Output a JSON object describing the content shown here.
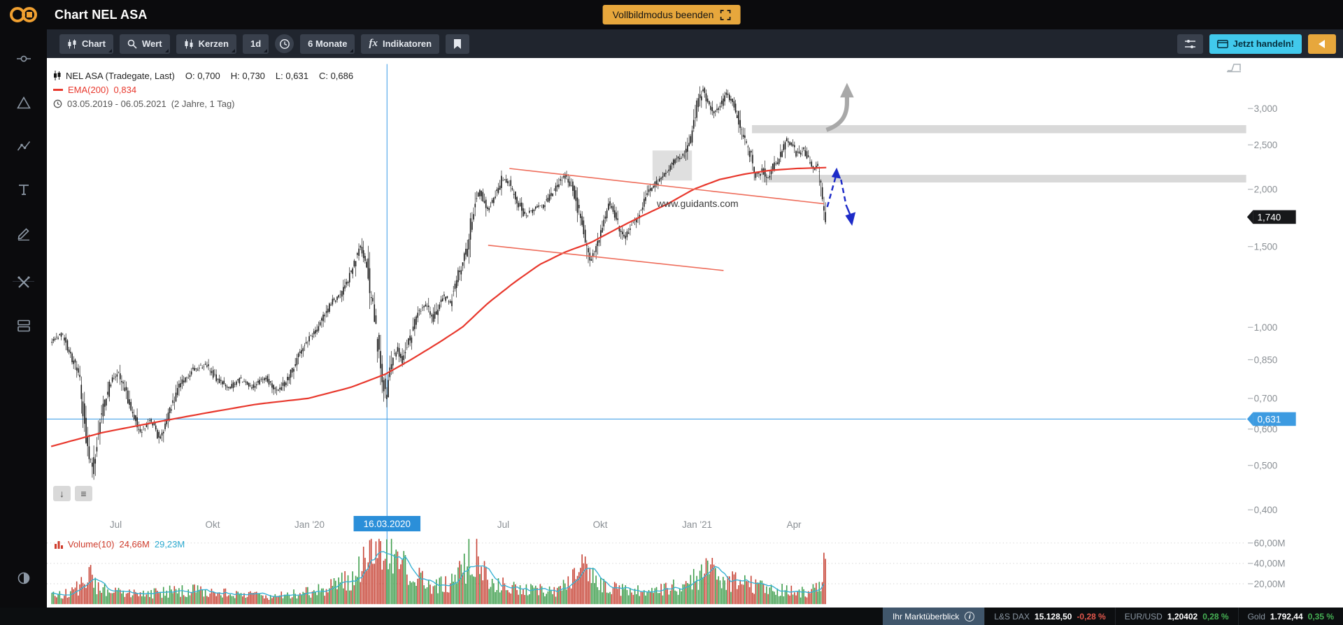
{
  "header": {
    "title": "Chart NEL ASA",
    "fullscreen_button": "Vollbildmodus beenden"
  },
  "toolbar": {
    "chart": "Chart",
    "wert": "Wert",
    "kerzen": "Kerzen",
    "interval": "1d",
    "range": "6 Monate",
    "fx": "fx",
    "indicators": "Indikatoren",
    "trade_button": "Jetzt handeln!"
  },
  "icons": {
    "chart_button": "candlestick-icon",
    "wert_button": "search-icon",
    "kerzen_button": "candlestick-icon",
    "range_button": "clock-icon",
    "indicators_button": "fx-icon",
    "bookmark_button": "bookmark-icon",
    "settings_button": "tune-icon",
    "trade_button": "card-icon",
    "collapse_button": "chevron-left-icon",
    "fullscreen_button": "fullscreen-exit-icon"
  },
  "legend": {
    "instrument": "NEL ASA (Tradegate, Last)",
    "ohlc": [
      {
        "k": "O:",
        "v": "0,700"
      },
      {
        "k": "H:",
        "v": "0,730"
      },
      {
        "k": "L:",
        "v": "0,631"
      },
      {
        "k": "C:",
        "v": "0,686"
      }
    ],
    "ema_label": "EMA(200)",
    "ema_value": "0,834",
    "range": "03.05.2019 - 06.05.2021",
    "range_detail": "(2 Jahre, 1 Tag)"
  },
  "watermark": "www.guidants.com",
  "volume_legend": {
    "label": "Volume(10)",
    "value1": "24,66M",
    "value2": "29,23M"
  },
  "statusbar": {
    "marktueberblick": "Ihr Marktüberblick",
    "info": "i",
    "items": [
      {
        "name": "L&S DAX",
        "value": "15.128,50",
        "change": "-0,28 %",
        "dir": "down"
      },
      {
        "name": "EUR/USD",
        "value": "1,20402",
        "change": "0,28 %",
        "dir": "up"
      },
      {
        "name": "Gold",
        "value": "1.792,44",
        "change": "0,35 %",
        "dir": "up"
      }
    ]
  },
  "colors": {
    "accent_orange": "#e7a73c",
    "accent_cyan": "#41c9ec",
    "candle": "#161616",
    "ema": "#e8382d",
    "trendline": "#ee6d5b",
    "crosshair": "#4aa3e8",
    "crosshair_tag": "#3d9be1",
    "date_tag": "#2b8fd9",
    "band": "#d9d9d9",
    "volume_up": "#3f9e4d",
    "volume_down": "#c74436",
    "volume_ma": "#35b1d4",
    "annotation_gray": "#a8a8a8",
    "annotation_blue": "#1d2bc8",
    "negative": "#e2574c",
    "positive": "#46b054"
  },
  "chart_data": {
    "type": "candlestick",
    "instrument": "NEL ASA",
    "feed": "Tradegate",
    "timeframe": "1d",
    "date_range": "03.05.2019 - 06.05.2021",
    "y_scale": "log",
    "y_ticks": [
      {
        "v": 3.0,
        "label": "3,000"
      },
      {
        "v": 2.5,
        "label": "2,500"
      },
      {
        "v": 2.0,
        "label": "2,000"
      },
      {
        "v": 1.5,
        "label": "1,500"
      },
      {
        "v": 1.0,
        "label": "1,000"
      },
      {
        "v": 0.85,
        "label": "0,850"
      },
      {
        "v": 0.7,
        "label": "0,700"
      },
      {
        "v": 0.6,
        "label": "0,600"
      },
      {
        "v": 0.5,
        "label": "0,500"
      },
      {
        "v": 0.4,
        "label": "0,400"
      }
    ],
    "x_ticks": [
      {
        "m": 2,
        "label": "Jul"
      },
      {
        "m": 5,
        "label": "Okt"
      },
      {
        "m": 8,
        "label": "Jan '20"
      },
      {
        "m": 14,
        "label": "Jul"
      },
      {
        "m": 17,
        "label": "Okt"
      },
      {
        "m": 20,
        "label": "Jan '21"
      },
      {
        "m": 23,
        "label": "Apr"
      }
    ],
    "vol_ticks": [
      {
        "v": 60,
        "label": "60,00M"
      },
      {
        "v": 40,
        "label": "40,00M"
      },
      {
        "v": 20,
        "label": "20,00M"
      }
    ],
    "crosshair": {
      "m": 10.4,
      "price": 0.631,
      "price_label": "0,631",
      "date_label": "16.03.2020"
    },
    "last": {
      "price": 1.74,
      "label": "1,740"
    },
    "ema": {
      "period": 200,
      "value_label": "0,834"
    },
    "price_path": [
      [
        0,
        0.93
      ],
      [
        0.4,
        0.97
      ],
      [
        0.66,
        0.87
      ],
      [
        0.93,
        0.78
      ],
      [
        1.19,
        0.53
      ],
      [
        1.33,
        0.48
      ],
      [
        1.54,
        0.63
      ],
      [
        1.86,
        0.75
      ],
      [
        2.12,
        0.8
      ],
      [
        2.44,
        0.69
      ],
      [
        2.79,
        0.59
      ],
      [
        3.13,
        0.63
      ],
      [
        3.4,
        0.57
      ],
      [
        3.71,
        0.66
      ],
      [
        4.03,
        0.75
      ],
      [
        4.46,
        0.81
      ],
      [
        4.83,
        0.83
      ],
      [
        5.17,
        0.77
      ],
      [
        5.57,
        0.74
      ],
      [
        5.92,
        0.77
      ],
      [
        6.31,
        0.74
      ],
      [
        6.68,
        0.78
      ],
      [
        7.06,
        0.72
      ],
      [
        7.37,
        0.77
      ],
      [
        7.69,
        0.87
      ],
      [
        8.01,
        0.94
      ],
      [
        8.36,
        1.01
      ],
      [
        8.7,
        1.13
      ],
      [
        9.02,
        1.18
      ],
      [
        9.34,
        1.33
      ],
      [
        9.6,
        1.52
      ],
      [
        9.81,
        1.37
      ],
      [
        10.08,
        1.01
      ],
      [
        10.29,
        0.78
      ],
      [
        10.4,
        0.7
      ],
      [
        10.56,
        0.82
      ],
      [
        10.74,
        0.91
      ],
      [
        10.93,
        0.84
      ],
      [
        11.14,
        0.94
      ],
      [
        11.41,
        1.08
      ],
      [
        11.67,
        1.12
      ],
      [
        11.88,
        1.04
      ],
      [
        12.15,
        1.17
      ],
      [
        12.41,
        1.14
      ],
      [
        12.68,
        1.32
      ],
      [
        12.94,
        1.5
      ],
      [
        13.16,
        1.89
      ],
      [
        13.32,
        2.0
      ],
      [
        13.53,
        1.81
      ],
      [
        13.74,
        1.89
      ],
      [
        14.01,
        2.12
      ],
      [
        14.22,
        2.06
      ],
      [
        14.46,
        1.9
      ],
      [
        14.72,
        1.75
      ],
      [
        14.99,
        1.82
      ],
      [
        15.25,
        1.84
      ],
      [
        15.52,
        1.94
      ],
      [
        15.78,
        2.08
      ],
      [
        16.0,
        2.16
      ],
      [
        16.23,
        1.97
      ],
      [
        16.5,
        1.64
      ],
      [
        16.71,
        1.4
      ],
      [
        16.92,
        1.51
      ],
      [
        17.19,
        1.74
      ],
      [
        17.37,
        1.87
      ],
      [
        17.56,
        1.71
      ],
      [
        17.77,
        1.57
      ],
      [
        18.04,
        1.68
      ],
      [
        18.3,
        1.8
      ],
      [
        18.57,
        2.0
      ],
      [
        18.83,
        2.08
      ],
      [
        19.1,
        2.2
      ],
      [
        19.36,
        2.31
      ],
      [
        19.63,
        2.37
      ],
      [
        19.84,
        2.61
      ],
      [
        20.03,
        3.03
      ],
      [
        20.21,
        3.3
      ],
      [
        20.37,
        3.12
      ],
      [
        20.56,
        2.94
      ],
      [
        20.74,
        3.03
      ],
      [
        20.95,
        3.2
      ],
      [
        21.11,
        3.12
      ],
      [
        21.27,
        2.94
      ],
      [
        21.49,
        2.61
      ],
      [
        21.7,
        2.37
      ],
      [
        21.88,
        2.14
      ],
      [
        22.07,
        2.21
      ],
      [
        22.23,
        2.08
      ],
      [
        22.41,
        2.24
      ],
      [
        22.6,
        2.34
      ],
      [
        22.81,
        2.56
      ],
      [
        23.0,
        2.48
      ],
      [
        23.16,
        2.37
      ],
      [
        23.34,
        2.48
      ],
      [
        23.5,
        2.31
      ],
      [
        23.66,
        2.21
      ],
      [
        23.79,
        2.27
      ],
      [
        23.9,
        1.97
      ],
      [
        24.0,
        1.74
      ]
    ],
    "ema_path": [
      [
        0,
        0.55
      ],
      [
        1.6,
        0.59
      ],
      [
        3.18,
        0.62
      ],
      [
        4.77,
        0.65
      ],
      [
        6.37,
        0.68
      ],
      [
        7.96,
        0.7
      ],
      [
        9.28,
        0.74
      ],
      [
        10.34,
        0.79
      ],
      [
        11.14,
        0.85
      ],
      [
        11.94,
        0.92
      ],
      [
        12.73,
        1.0
      ],
      [
        13.53,
        1.13
      ],
      [
        14.32,
        1.25
      ],
      [
        15.12,
        1.37
      ],
      [
        15.92,
        1.46
      ],
      [
        16.71,
        1.53
      ],
      [
        17.51,
        1.64
      ],
      [
        18.3,
        1.75
      ],
      [
        19.1,
        1.86
      ],
      [
        19.89,
        2.0
      ],
      [
        20.69,
        2.1
      ],
      [
        21.49,
        2.16
      ],
      [
        22.28,
        2.2
      ],
      [
        23.08,
        2.22
      ],
      [
        24.0,
        2.23
      ]
    ],
    "volume_profile": [
      [
        0,
        12
      ],
      [
        0.5,
        10
      ],
      [
        1.05,
        22
      ],
      [
        1.2,
        45
      ],
      [
        1.45,
        16
      ],
      [
        2,
        12
      ],
      [
        3,
        10
      ],
      [
        4,
        14
      ],
      [
        5,
        12
      ],
      [
        6,
        9
      ],
      [
        7,
        8
      ],
      [
        8,
        12
      ],
      [
        8.7,
        18
      ],
      [
        9.3,
        25
      ],
      [
        9.6,
        40
      ],
      [
        9.9,
        55
      ],
      [
        10.2,
        62
      ],
      [
        10.45,
        58
      ],
      [
        10.7,
        45
      ],
      [
        11,
        34
      ],
      [
        11.5,
        22
      ],
      [
        12,
        18
      ],
      [
        12.7,
        30
      ],
      [
        12.95,
        50
      ],
      [
        13.2,
        47
      ],
      [
        13.5,
        25
      ],
      [
        14,
        20
      ],
      [
        14.5,
        15
      ],
      [
        15,
        14
      ],
      [
        15.5,
        12
      ],
      [
        16,
        18
      ],
      [
        16.5,
        42
      ],
      [
        16.8,
        28
      ],
      [
        17.2,
        19
      ],
      [
        17.6,
        15
      ],
      [
        18,
        13
      ],
      [
        18.5,
        14
      ],
      [
        19,
        16
      ],
      [
        19.5,
        18
      ],
      [
        20,
        25
      ],
      [
        20.3,
        35
      ],
      [
        20.7,
        28
      ],
      [
        21,
        22
      ],
      [
        21.5,
        20
      ],
      [
        22,
        17
      ],
      [
        22.5,
        14
      ],
      [
        23,
        12
      ],
      [
        23.5,
        13
      ],
      [
        23.8,
        18
      ],
      [
        23.93,
        55
      ],
      [
        24,
        42
      ]
    ],
    "trendlines": [
      {
        "m1": 14.19,
        "p1": 2.22,
        "m2": 23.93,
        "p2": 1.86
      },
      {
        "m1": 13.53,
        "p1": 1.51,
        "m2": 20.82,
        "p2": 1.33
      }
    ],
    "bands": [
      {
        "m1": 21.7,
        "p_top": 2.76,
        "p_bot": 2.65
      },
      {
        "m1": 22.0,
        "p_top": 2.15,
        "p_bot": 2.07
      }
    ],
    "box": {
      "m1": 18.62,
      "m2": 19.84,
      "p_top": 2.43,
      "p_bot": 2.09
    }
  }
}
